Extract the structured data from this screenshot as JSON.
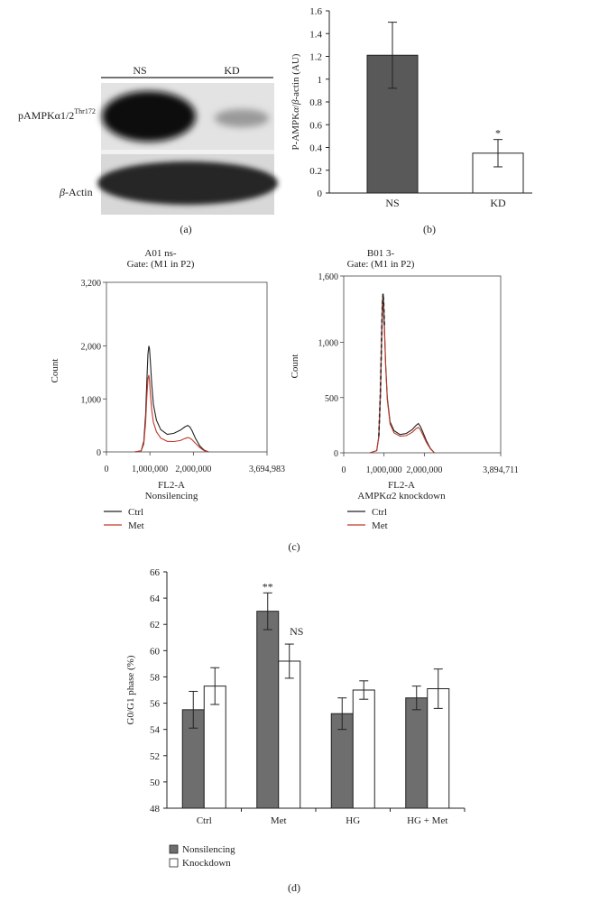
{
  "panel_labels": {
    "a": "(a)",
    "b": "(b)",
    "c": "(c)",
    "d": "(d)"
  },
  "blot": {
    "lane_labels": [
      "NS",
      "KD"
    ],
    "row_label_main": "pAMPKα1/2",
    "row_label_sup": "Thr172",
    "actin_prefix": "β",
    "actin_suffix": "-Actin"
  },
  "chart_data": [
    {
      "type": "bar",
      "panel": "b",
      "categories": [
        "NS",
        "KD"
      ],
      "values": [
        1.21,
        0.35
      ],
      "errors": [
        0.29,
        0.12
      ],
      "bar_colors": [
        "#595959",
        "#ffffff"
      ],
      "annotations": [
        {
          "category": "KD",
          "text": "*"
        }
      ],
      "ylabel_prefix": "P-AMPK",
      "ylabel_alpha": "α",
      "ylabel_mid": "/",
      "ylabel_beta": "β",
      "ylabel_suffix": "-actin (AU)",
      "ylim": [
        0,
        1.6
      ],
      "yticks": [
        "0",
        "0.2",
        "0.4",
        "0.6",
        "0.8",
        "1",
        "1.2",
        "1.4",
        "1.6"
      ]
    },
    {
      "type": "line",
      "panel": "c-left",
      "title_line1": "A01 ns-",
      "title_line2": "Gate: (M1 in P2)",
      "xlabel": "FL2-A",
      "subtitle": "Nonsilencing",
      "ylabel": "Count",
      "xlim": [
        0,
        3694983
      ],
      "ylim": [
        0,
        3200
      ],
      "xticks": [
        "0",
        "1,000,000",
        "2,000,000",
        "3,694,983"
      ],
      "yticks": [
        "0",
        "1,000",
        "2,000",
        "3,200"
      ],
      "series": [
        {
          "name": "Ctrl",
          "color": "#222222",
          "x": [
            650000,
            800000,
            860000,
            900000,
            930000,
            955000,
            975000,
            990000,
            1010000,
            1040000,
            1080000,
            1150000,
            1250000,
            1400000,
            1550000,
            1700000,
            1800000,
            1870000,
            1920000,
            1970000,
            2050000,
            2150000,
            2250000,
            2350000
          ],
          "y": [
            0,
            20,
            200,
            700,
            1350,
            1850,
            2000,
            1950,
            1700,
            1300,
            900,
            600,
            420,
            330,
            350,
            410,
            470,
            500,
            470,
            400,
            250,
            110,
            30,
            0
          ]
        },
        {
          "name": "Met",
          "color": "#c0392b",
          "x": [
            650000,
            800000,
            860000,
            900000,
            930000,
            955000,
            975000,
            990000,
            1010000,
            1040000,
            1080000,
            1150000,
            1250000,
            1400000,
            1550000,
            1700000,
            1800000,
            1870000,
            1920000,
            1970000,
            2050000,
            2150000,
            2250000,
            2350000
          ],
          "y": [
            0,
            20,
            150,
            550,
            1050,
            1380,
            1450,
            1350,
            1100,
            800,
            560,
            380,
            260,
            200,
            195,
            215,
            250,
            270,
            260,
            230,
            160,
            80,
            20,
            0
          ]
        }
      ],
      "legend": [
        "Ctrl",
        "Met"
      ]
    },
    {
      "type": "line",
      "panel": "c-right",
      "title_line1": "B01 3-",
      "title_line2": "Gate: (M1 in P2)",
      "xlabel": "FL2-A",
      "subtitle_prefix": "AMPK",
      "subtitle_alpha": "α",
      "subtitle_suffix": "2 knockdown",
      "ylabel": "Count",
      "xlim": [
        0,
        3894711
      ],
      "ylim": [
        0,
        1600
      ],
      "xticks": [
        "0",
        "1,000,000",
        "2,000,000",
        "3,894,711"
      ],
      "yticks": [
        "0",
        "500",
        "1,000",
        "1,600"
      ],
      "series": [
        {
          "name": "Ctrl",
          "color": "#222222",
          "x": [
            650000,
            820000,
            870000,
            910000,
            940000,
            960000,
            975000,
            990000,
            1010000,
            1040000,
            1080000,
            1150000,
            1250000,
            1400000,
            1550000,
            1700000,
            1800000,
            1850000,
            1900000,
            1960000,
            2050000,
            2150000,
            2250000
          ],
          "y": [
            0,
            20,
            150,
            550,
            1050,
            1350,
            1440,
            1380,
            1150,
            800,
            500,
            280,
            200,
            165,
            175,
            210,
            250,
            265,
            240,
            190,
            110,
            40,
            0
          ]
        },
        {
          "name": "Met",
          "color": "#c0392b",
          "x": [
            650000,
            820000,
            870000,
            910000,
            940000,
            960000,
            975000,
            990000,
            1010000,
            1040000,
            1080000,
            1150000,
            1250000,
            1400000,
            1550000,
            1700000,
            1800000,
            1850000,
            1900000,
            1960000,
            2050000,
            2150000,
            2250000
          ],
          "y": [
            0,
            20,
            140,
            520,
            1000,
            1300,
            1410,
            1350,
            1120,
            780,
            480,
            260,
            180,
            150,
            155,
            185,
            220,
            230,
            210,
            165,
            95,
            35,
            0
          ]
        }
      ],
      "legend": [
        "Ctrl",
        "Met"
      ]
    },
    {
      "type": "bar",
      "panel": "d",
      "categories": [
        "Ctrl",
        "Met",
        "HG",
        "HG + Met"
      ],
      "series": [
        {
          "name": "Nonsilencing",
          "color": "#6e6e6e",
          "values": [
            55.5,
            63.0,
            55.2,
            56.4
          ],
          "errors": [
            1.4,
            1.4,
            1.2,
            0.9
          ]
        },
        {
          "name": "Knockdown",
          "color": "#ffffff",
          "values": [
            57.3,
            59.2,
            57.0,
            57.1
          ],
          "errors": [
            1.4,
            1.3,
            0.7,
            1.5
          ]
        }
      ],
      "annotations": [
        {
          "category": "Met",
          "series": "Nonsilencing",
          "text": "**"
        },
        {
          "category": "Met",
          "series": "Knockdown",
          "text": "NS"
        }
      ],
      "ylabel": "G0/G1 phase (%)",
      "ylim": [
        48,
        66
      ],
      "yticks": [
        "48",
        "50",
        "52",
        "54",
        "56",
        "58",
        "60",
        "62",
        "64",
        "66"
      ],
      "legend": [
        "Nonsilencing",
        "Knockdown"
      ]
    }
  ]
}
